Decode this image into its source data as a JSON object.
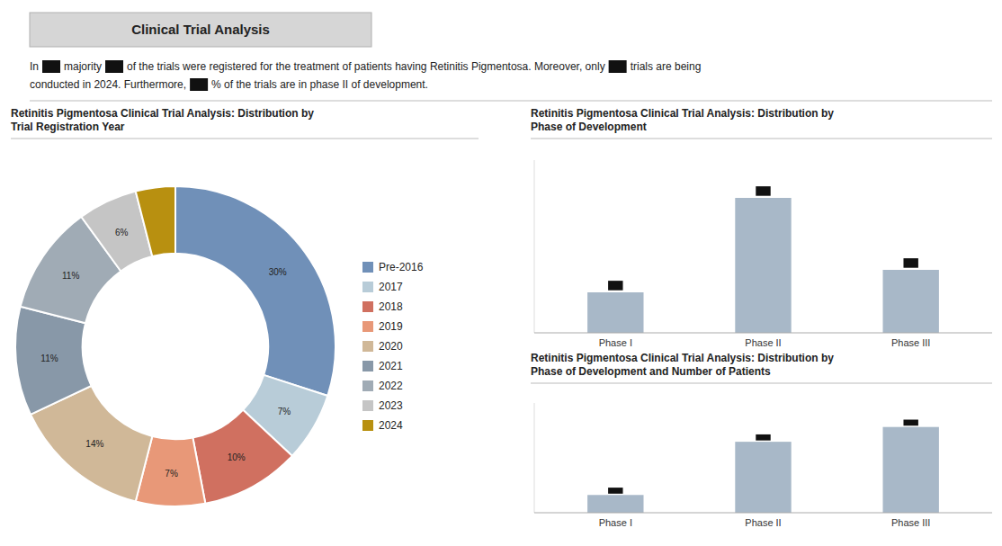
{
  "title": "Clinical Trial Analysis",
  "annotations": [
    [
      "In",
      "majority",
      "of the trials were registered for the treatment of patients having Retinitis Pigmentosa. Moreover, only",
      "trials are being"
    ],
    [
      "conducted in 2024. Furthermore,",
      "% of the trials are in phase II of development."
    ]
  ],
  "chart_data": [
    {
      "type": "pie",
      "title": "Retinitis Pigmentosa Clinical Trial Analysis: Distribution by\nTrial Registration Year",
      "categories": [
        "Pre-2016",
        "2017",
        "2018",
        "2019",
        "2020",
        "2021",
        "2022",
        "2023",
        "2024"
      ],
      "values": [
        30,
        7,
        10,
        7,
        14,
        11,
        11,
        6,
        4
      ],
      "value_labels": [
        "30%",
        "7%",
        "10%",
        "7%",
        "14%",
        "11%",
        "11%",
        "6%",
        null
      ],
      "colors": [
        "#7090b8",
        "#b8ccd8",
        "#d07060",
        "#e89878",
        "#d0b898",
        "#8898a8",
        "#a0abb5",
        "#c5c5c5",
        "#b89010"
      ],
      "data_labels": true,
      "legend": "right"
    },
    {
      "type": "bar",
      "title": "Retinitis Pigmentosa Clinical Trial Analysis: Distribution by\nPhase of Development",
      "categories": [
        "Phase I",
        "Phase II",
        "Phase III"
      ],
      "values": [
        18,
        60,
        28
      ],
      "color": "#a8b8c8",
      "ylim": [
        0,
        76.8
      ],
      "tick_labels": "x"
    },
    {
      "type": "bar",
      "title": "Retinitis Pigmentosa Clinical Trial Analysis: Distribution by\nPhase of Development and Number of Patients",
      "categories": [
        "Phase I",
        "Phase II",
        "Phase III"
      ],
      "values": [
        12,
        48,
        58
      ],
      "color": "#a8b8c8",
      "ylim": [
        0,
        74.24
      ],
      "tick_labels": "x"
    }
  ]
}
